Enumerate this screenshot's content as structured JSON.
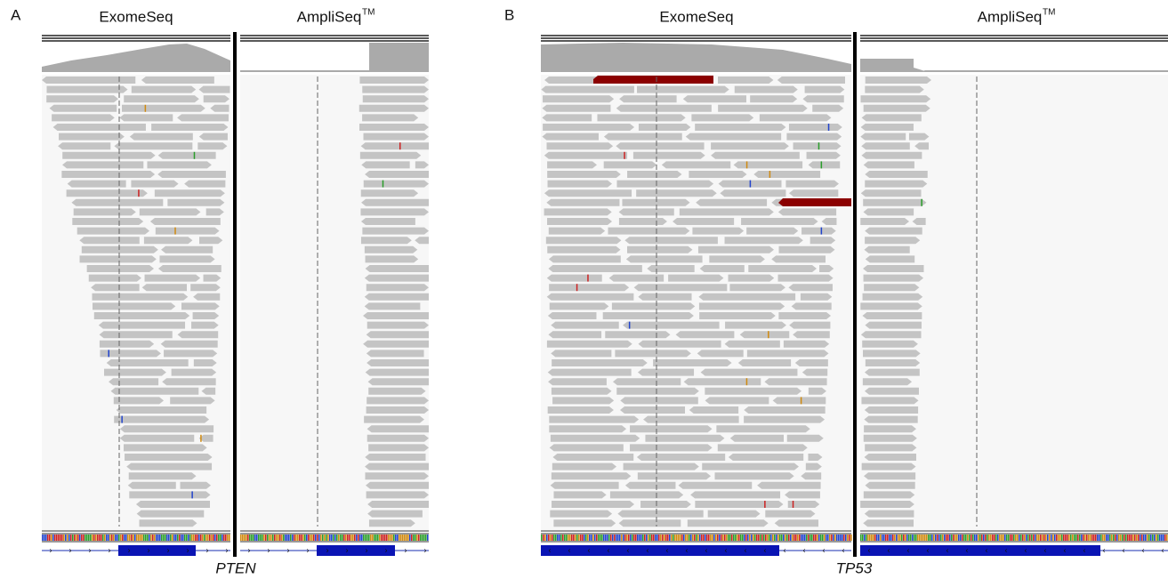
{
  "panels": [
    {
      "label": "A",
      "tracks": [
        "ExomeSeq",
        "AmpliSeq"
      ],
      "trademark": "TM",
      "gene": "PTEN"
    },
    {
      "label": "B",
      "tracks": [
        "ExomeSeq",
        "AmpliSeq"
      ],
      "trademark": "TM",
      "gene": "TP53"
    }
  ]
}
